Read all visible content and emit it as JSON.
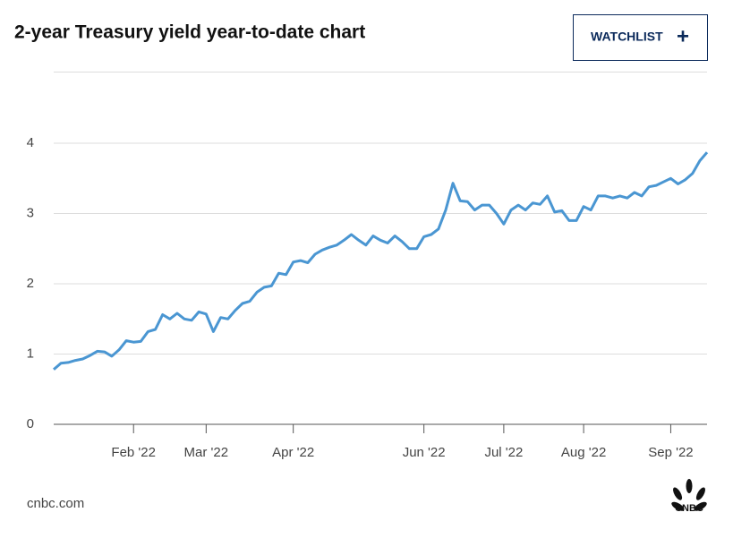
{
  "chart_data": {
    "type": "line",
    "title": "2-year Treasury yield year-to-date chart",
    "button": {
      "label": "WATCHLIST",
      "icon": "+"
    },
    "source": "cnbc.com",
    "logo": "CNBC",
    "color": "#4a96d2",
    "grid": true,
    "ylim": [
      0,
      5
    ],
    "yticks": [
      0,
      1,
      2,
      3,
      4
    ],
    "categories": [
      null,
      null,
      null,
      null,
      null,
      null,
      null,
      null,
      null,
      null,
      null,
      "Feb '22",
      null,
      null,
      null,
      null,
      null,
      null,
      null,
      null,
      null,
      "Mar '22",
      null,
      null,
      null,
      null,
      null,
      null,
      null,
      null,
      null,
      null,
      null,
      "Apr '22",
      null,
      null,
      null,
      null,
      null,
      null,
      null,
      null,
      null,
      null,
      null,
      null,
      null,
      null,
      null,
      null,
      null,
      "Jun '22",
      null,
      null,
      null,
      null,
      null,
      null,
      null,
      null,
      null,
      null,
      "Jul '22",
      null,
      null,
      null,
      null,
      null,
      null,
      null,
      null,
      null,
      null,
      "Aug '22",
      null,
      null,
      null,
      null,
      null,
      null,
      null,
      null,
      null,
      null,
      null,
      "Sep '22",
      null,
      null,
      null,
      null,
      null
    ],
    "values": [
      0.78,
      0.87,
      0.88,
      0.91,
      0.93,
      0.98,
      1.04,
      1.03,
      0.97,
      1.06,
      1.19,
      1.17,
      1.18,
      1.32,
      1.35,
      1.56,
      1.5,
      1.58,
      1.5,
      1.48,
      1.6,
      1.57,
      1.32,
      1.52,
      1.5,
      1.62,
      1.72,
      1.75,
      1.88,
      1.95,
      1.97,
      2.15,
      2.13,
      2.31,
      2.33,
      2.3,
      2.42,
      2.48,
      2.52,
      2.55,
      2.62,
      2.7,
      2.62,
      2.55,
      2.68,
      2.62,
      2.58,
      2.68,
      2.6,
      2.5,
      2.5,
      2.67,
      2.7,
      2.78,
      3.05,
      3.43,
      3.18,
      3.17,
      3.05,
      3.12,
      3.12,
      3.0,
      2.85,
      3.05,
      3.12,
      3.05,
      3.15,
      3.13,
      3.25,
      3.02,
      3.04,
      2.9,
      2.9,
      3.1,
      3.05,
      3.25,
      3.25,
      3.22,
      3.25,
      3.22,
      3.3,
      3.25,
      3.38,
      3.4,
      3.45,
      3.5,
      3.42,
      3.48,
      3.57,
      3.75,
      3.87
    ]
  }
}
